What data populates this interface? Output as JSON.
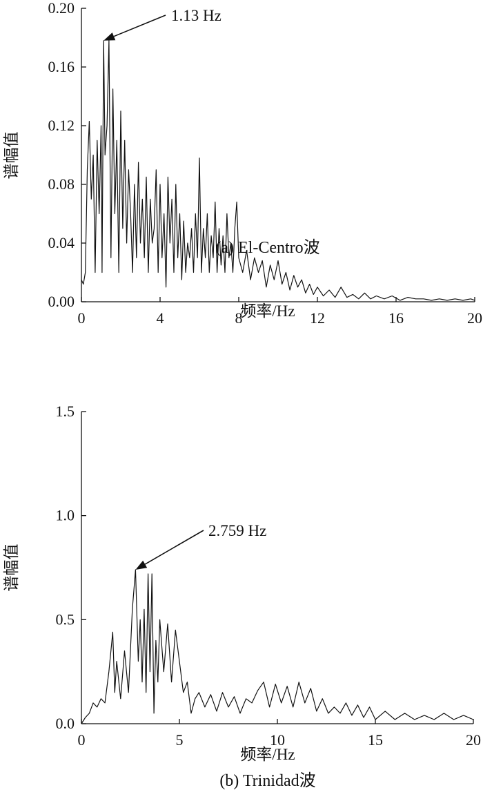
{
  "chart_data": [
    {
      "type": "line",
      "caption": "(a) El-Centro波",
      "xlabel": "频率/Hz",
      "ylabel": "谱幅值",
      "xlim": [
        0,
        20
      ],
      "ylim": [
        0,
        0.2
      ],
      "xticks": [
        0,
        4,
        8,
        12,
        16,
        20
      ],
      "xtick_labels": [
        "0",
        "4",
        "8",
        "12",
        "16",
        "20"
      ],
      "yticks": [
        0,
        0.04,
        0.08,
        0.12,
        0.16,
        0.2
      ],
      "ytick_labels": [
        "0.00",
        "0.04",
        "0.08",
        "0.12",
        "0.16",
        "0.20"
      ],
      "grid": false,
      "annotation": {
        "text": "1.13 Hz",
        "x": 1.13,
        "y": 0.178
      },
      "series": [
        {
          "x": [
            0,
            0.1,
            0.2,
            0.3,
            0.4,
            0.5,
            0.6,
            0.7,
            0.8,
            0.9,
            1.0,
            1.05,
            1.13,
            1.2,
            1.3,
            1.4,
            1.5,
            1.6,
            1.7,
            1.8,
            1.9,
            2.0,
            2.1,
            2.2,
            2.3,
            2.4,
            2.5,
            2.6,
            2.7,
            2.8,
            2.9,
            3.0,
            3.1,
            3.2,
            3.3,
            3.4,
            3.5,
            3.6,
            3.7,
            3.8,
            3.9,
            4.0,
            4.1,
            4.2,
            4.3,
            4.4,
            4.5,
            4.6,
            4.7,
            4.8,
            4.9,
            5.0,
            5.1,
            5.2,
            5.3,
            5.4,
            5.5,
            5.6,
            5.7,
            5.8,
            5.9,
            6.0,
            6.1,
            6.2,
            6.3,
            6.4,
            6.5,
            6.6,
            6.7,
            6.8,
            6.9,
            7.0,
            7.1,
            7.2,
            7.3,
            7.4,
            7.5,
            7.6,
            7.7,
            7.8,
            7.9,
            8.0,
            8.2,
            8.4,
            8.6,
            8.8,
            9.0,
            9.2,
            9.4,
            9.6,
            9.8,
            10.0,
            10.2,
            10.4,
            10.6,
            10.8,
            11.0,
            11.2,
            11.4,
            11.6,
            11.8,
            12.0,
            12.3,
            12.6,
            12.9,
            13.2,
            13.5,
            13.8,
            14.1,
            14.4,
            14.7,
            15.0,
            15.4,
            15.8,
            16.2,
            16.6,
            17.0,
            17.4,
            17.8,
            18.2,
            18.6,
            19.0,
            19.4,
            19.8,
            20.0
          ],
          "values": [
            0.015,
            0.012,
            0.02,
            0.09,
            0.123,
            0.07,
            0.1,
            0.02,
            0.11,
            0.06,
            0.12,
            0.02,
            0.178,
            0.1,
            0.12,
            0.178,
            0.03,
            0.145,
            0.06,
            0.11,
            0.02,
            0.13,
            0.05,
            0.11,
            0.04,
            0.09,
            0.06,
            0.02,
            0.08,
            0.03,
            0.095,
            0.04,
            0.07,
            0.03,
            0.085,
            0.02,
            0.07,
            0.04,
            0.05,
            0.09,
            0.02,
            0.08,
            0.03,
            0.06,
            0.01,
            0.085,
            0.04,
            0.07,
            0.02,
            0.08,
            0.03,
            0.06,
            0.015,
            0.055,
            0.02,
            0.04,
            0.03,
            0.05,
            0.02,
            0.06,
            0.03,
            0.098,
            0.02,
            0.05,
            0.03,
            0.06,
            0.02,
            0.045,
            0.03,
            0.068,
            0.02,
            0.05,
            0.025,
            0.045,
            0.02,
            0.06,
            0.03,
            0.04,
            0.02,
            0.05,
            0.068,
            0.03,
            0.02,
            0.035,
            0.015,
            0.03,
            0.02,
            0.028,
            0.01,
            0.025,
            0.015,
            0.028,
            0.012,
            0.02,
            0.008,
            0.018,
            0.01,
            0.015,
            0.006,
            0.012,
            0.005,
            0.01,
            0.004,
            0.008,
            0.003,
            0.01,
            0.003,
            0.005,
            0.002,
            0.006,
            0.002,
            0.004,
            0.002,
            0.004,
            0.001,
            0.003,
            0.002,
            0.002,
            0.001,
            0.002,
            0.001,
            0.002,
            0.001,
            0.002,
            0.001
          ]
        }
      ]
    },
    {
      "type": "line",
      "caption": "(b) Trinidad波",
      "xlabel": "频率/Hz",
      "ylabel": "谱幅值",
      "xlim": [
        0,
        20
      ],
      "ylim": [
        0,
        1.5
      ],
      "xticks": [
        0,
        5,
        10,
        15,
        20
      ],
      "xtick_labels": [
        "0",
        "5",
        "10",
        "15",
        "20"
      ],
      "yticks": [
        0,
        0.5,
        1.0,
        1.5
      ],
      "ytick_labels": [
        "0.0",
        "0.5",
        "1.0",
        "1.5"
      ],
      "grid": false,
      "annotation": {
        "text": "2.759 Hz",
        "x": 2.759,
        "y": 0.74
      },
      "series": [
        {
          "x": [
            0,
            0.2,
            0.4,
            0.6,
            0.8,
            1.0,
            1.2,
            1.4,
            1.6,
            1.7,
            1.8,
            2.0,
            2.2,
            2.4,
            2.6,
            2.759,
            2.9,
            3.0,
            3.1,
            3.2,
            3.3,
            3.4,
            3.5,
            3.6,
            3.7,
            3.8,
            3.9,
            4.0,
            4.2,
            4.4,
            4.6,
            4.8,
            5.0,
            5.2,
            5.4,
            5.6,
            5.8,
            6.0,
            6.3,
            6.6,
            6.9,
            7.2,
            7.5,
            7.8,
            8.1,
            8.4,
            8.7,
            9.0,
            9.3,
            9.6,
            9.9,
            10.2,
            10.5,
            10.8,
            11.1,
            11.4,
            11.7,
            12.0,
            12.3,
            12.6,
            12.9,
            13.2,
            13.5,
            13.8,
            14.1,
            14.4,
            14.7,
            15.0,
            15.5,
            16.0,
            16.5,
            17.0,
            17.5,
            18.0,
            18.5,
            19.0,
            19.5,
            20.0
          ],
          "values": [
            0.0,
            0.03,
            0.05,
            0.1,
            0.08,
            0.12,
            0.1,
            0.25,
            0.44,
            0.15,
            0.3,
            0.12,
            0.35,
            0.15,
            0.55,
            0.74,
            0.3,
            0.5,
            0.2,
            0.55,
            0.15,
            0.72,
            0.25,
            0.72,
            0.05,
            0.4,
            0.2,
            0.5,
            0.25,
            0.48,
            0.2,
            0.45,
            0.3,
            0.15,
            0.2,
            0.05,
            0.12,
            0.15,
            0.08,
            0.14,
            0.06,
            0.15,
            0.08,
            0.13,
            0.05,
            0.12,
            0.1,
            0.16,
            0.2,
            0.08,
            0.19,
            0.1,
            0.18,
            0.08,
            0.2,
            0.1,
            0.17,
            0.06,
            0.12,
            0.05,
            0.08,
            0.05,
            0.1,
            0.04,
            0.09,
            0.03,
            0.08,
            0.02,
            0.06,
            0.02,
            0.05,
            0.02,
            0.04,
            0.02,
            0.05,
            0.02,
            0.04,
            0.02
          ]
        }
      ]
    }
  ]
}
